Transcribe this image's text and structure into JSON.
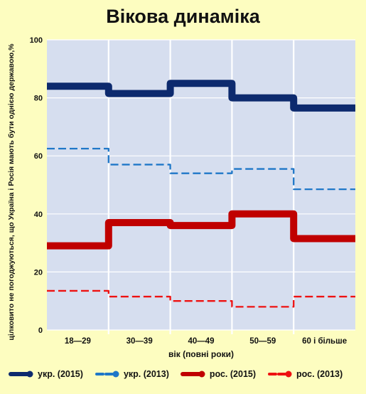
{
  "chart_data": {
    "type": "line",
    "step": true,
    "title": "Вікова динаміка",
    "xlabel": "вік (повні роки)",
    "ylabel": "цілковито не погоджуються, що Україна і Росія мають бути однією державою,%",
    "categories": [
      "18—29",
      "30—39",
      "40—49",
      "50—59",
      "60 і більше"
    ],
    "ylim": [
      0,
      100
    ],
    "yticks": [
      "0",
      "20",
      "40",
      "60",
      "80",
      "100"
    ],
    "grid": true,
    "legend_position": "bottom",
    "series": [
      {
        "name": "укр. (2015)",
        "values": [
          84,
          81.5,
          85,
          80,
          76.5
        ],
        "color": "#0d2a6e",
        "style": "solid",
        "weight": "thick"
      },
      {
        "name": "укр. (2013)",
        "values": [
          62.5,
          57,
          54,
          55.5,
          48.5
        ],
        "color": "#1f77c8",
        "style": "dashed",
        "weight": "thin"
      },
      {
        "name": "рос. (2015)",
        "values": [
          29,
          37,
          36,
          40,
          31.5
        ],
        "color": "#c00000",
        "style": "solid",
        "weight": "thick"
      },
      {
        "name": "рос. (2013)",
        "values": [
          13.5,
          11.5,
          10,
          8,
          11.5
        ],
        "color": "#ee1111",
        "style": "dashed",
        "weight": "thin"
      }
    ]
  }
}
